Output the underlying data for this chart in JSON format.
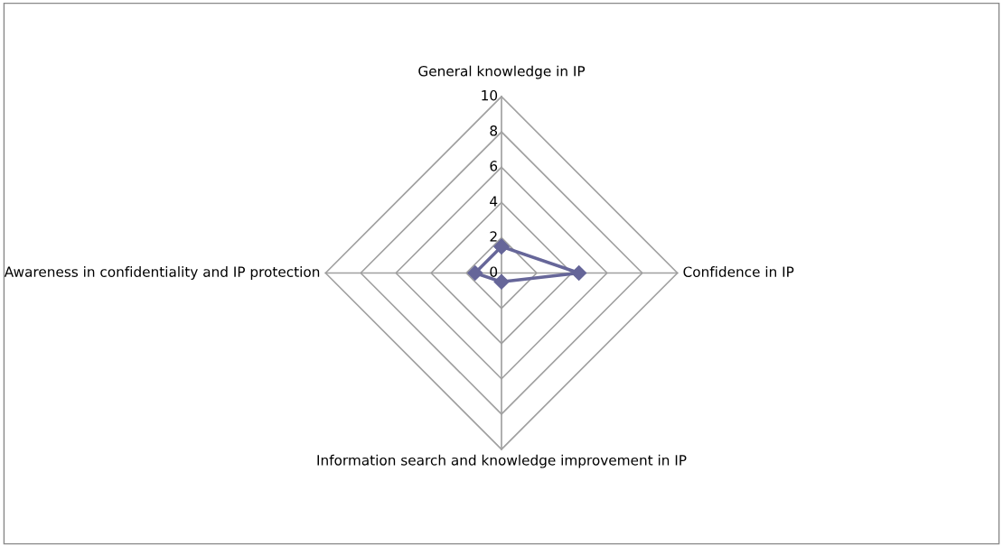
{
  "chart_data": {
    "type": "radar",
    "categories": [
      "General knowledge in IP",
      "Confidence in IP",
      "Information search and knowledge improvement in IP",
      "Awareness in confidentiality and IP protection"
    ],
    "series": [
      {
        "color": "#666699",
        "values": [
          1.5,
          4.4,
          0.5,
          1.5
        ]
      }
    ],
    "ylim": [
      0,
      10
    ],
    "yticks": [
      0,
      2,
      4,
      6,
      8,
      10
    ],
    "marker": "diamond",
    "grid": true
  }
}
